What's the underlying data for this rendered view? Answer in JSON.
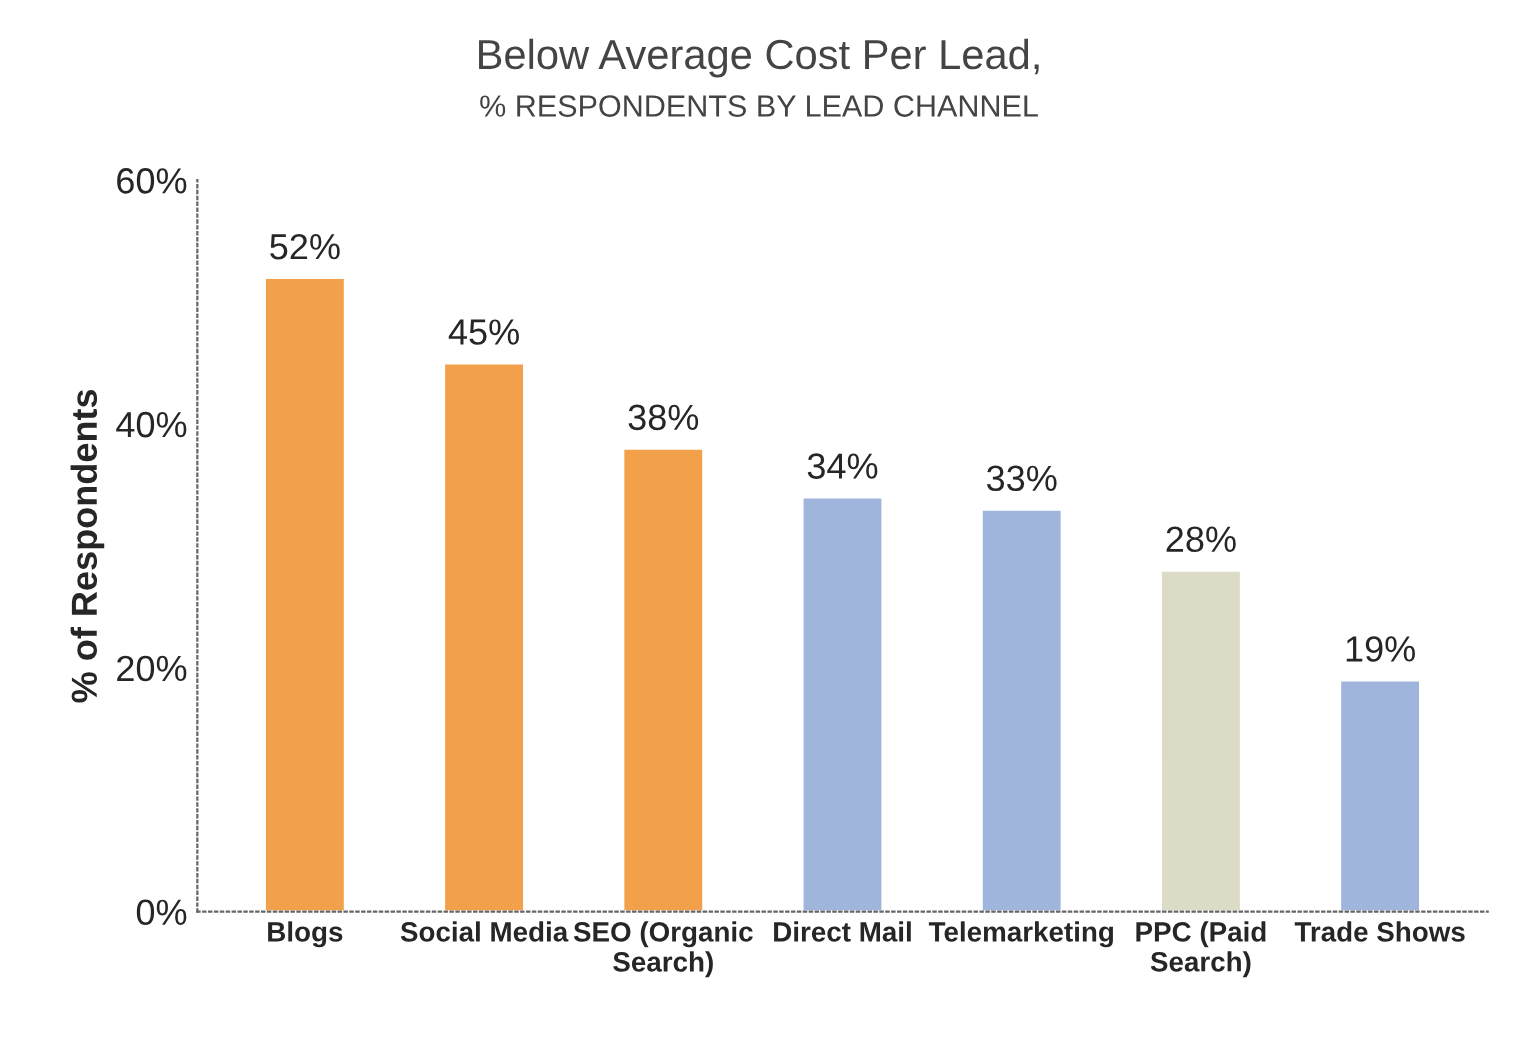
{
  "chart_data": {
    "type": "bar",
    "title": "Below Average Cost Per Lead,",
    "subtitle": "% RESPONDENTS BY LEAD CHANNEL",
    "ylabel": "% of Respondents",
    "categories": [
      "Blogs",
      "Social Media",
      "SEO (Organic\nSearch)",
      "Direct Mail",
      "Telemarketing",
      "PPC (Paid\nSearch)",
      "Trade Shows"
    ],
    "values": [
      52,
      45,
      38,
      34,
      33,
      28,
      19
    ],
    "colors": [
      "#f2a04a",
      "#f2a04a",
      "#f2a04a",
      "#9fb5dc",
      "#9fb5dc",
      "#dcdbc6",
      "#9fb5dc"
    ],
    "value_labels": [
      "52%",
      "45%",
      "38%",
      "34%",
      "33%",
      "28%",
      "19%"
    ],
    "ylim": [
      0,
      60
    ],
    "yticks": [
      {
        "value": 0,
        "label": "0%"
      },
      {
        "value": 20,
        "label": "20%"
      },
      {
        "value": 40,
        "label": "40%"
      },
      {
        "value": 60,
        "label": "60%"
      }
    ],
    "grid": false,
    "legend": false
  }
}
